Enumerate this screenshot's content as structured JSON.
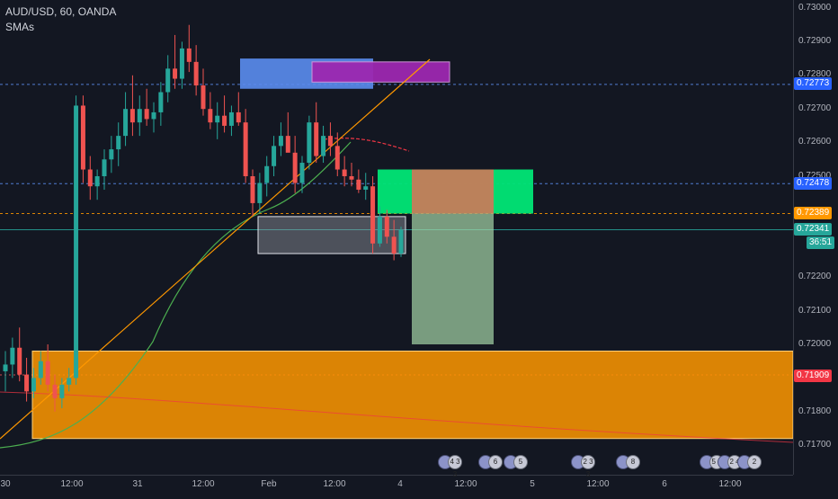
{
  "header": {
    "symbol": "AUD/USD, 60, OANDA",
    "study": "SMAs"
  },
  "price_axis": {
    "ticks": [
      "0.73000",
      "0.72900",
      "0.72800",
      "0.72700",
      "0.72600",
      "0.72500",
      "0.72200",
      "0.72100",
      "0.72000",
      "0.71800",
      "0.71700"
    ],
    "tags": [
      {
        "label": "0.72773",
        "color": "#2962ff"
      },
      {
        "label": "0.72478",
        "color": "#2962ff"
      },
      {
        "label": "0.72389",
        "color": "#ff9800"
      },
      {
        "label": "0.72341",
        "color": "#26a69a"
      },
      {
        "label": "36:51",
        "color": "#26a69a"
      },
      {
        "label": "0.71909",
        "color": "#f23645"
      }
    ]
  },
  "time_axis": {
    "ticks": [
      "30",
      "12:00",
      "31",
      "12:00",
      "Feb",
      "12:00",
      "4",
      "12:00",
      "5",
      "12:00",
      "6",
      "12:00"
    ]
  },
  "events": [
    {
      "label": "4 3 3",
      "kind": "calendar"
    },
    {
      "label": "6",
      "kind": "calendar"
    },
    {
      "label": "5",
      "kind": "calendar"
    },
    {
      "label": "2 3 3",
      "kind": "calendar"
    },
    {
      "label": "8",
      "kind": "calendar"
    },
    {
      "label": "5 3",
      "kind": "calendar"
    },
    {
      "label": "2 4",
      "kind": "calendar"
    },
    {
      "label": "2",
      "kind": "calendar"
    }
  ],
  "colors": {
    "up": "#26a69a",
    "down": "#ef5350",
    "background": "#131722",
    "sma_fast": "#f23645",
    "sma_slow": "#4caf50",
    "trendline": "#ff9800",
    "zone_orange": "#ff9800",
    "zone_blue": "#5b8def",
    "zone_purple": "#9c27b0",
    "target": "#00e676",
    "risk": "#c57c5a"
  },
  "chart_data": {
    "type": "candlestick",
    "symbol": "AUD/USD",
    "interval": "60",
    "ylim": [
      0.7165,
      0.7305
    ],
    "levels": [
      0.72773,
      0.72478,
      0.72389,
      0.72341,
      0.71909
    ],
    "zones": [
      {
        "name": "demand",
        "y_range": [
          0.7172,
          0.7198
        ]
      },
      {
        "name": "range",
        "y_range": [
          0.7227,
          0.7238
        ]
      },
      {
        "name": "supply-blue",
        "y_range": [
          0.7276,
          0.7285
        ]
      },
      {
        "name": "supply-purple",
        "y_range": [
          0.7278,
          0.7284
        ]
      }
    ],
    "position": {
      "type": "long",
      "entry": 0.72389,
      "target": 0.7252,
      "stop": 0.72
    },
    "candles": [
      [
        0.7192,
        0.7198,
        0.7186,
        0.7194
      ],
      [
        0.7194,
        0.7202,
        0.719,
        0.7199
      ],
      [
        0.7199,
        0.7205,
        0.7189,
        0.7191
      ],
      [
        0.7191,
        0.7196,
        0.7183,
        0.7186
      ],
      [
        0.7186,
        0.7193,
        0.7184,
        0.719
      ],
      [
        0.719,
        0.7198,
        0.7188,
        0.7195
      ],
      [
        0.7195,
        0.72,
        0.7186,
        0.7188
      ],
      [
        0.7188,
        0.7191,
        0.718,
        0.7184
      ],
      [
        0.7184,
        0.719,
        0.7181,
        0.7188
      ],
      [
        0.7188,
        0.7193,
        0.7186,
        0.719
      ],
      [
        0.719,
        0.7274,
        0.7188,
        0.7271
      ],
      [
        0.7271,
        0.7274,
        0.7248,
        0.7252
      ],
      [
        0.7252,
        0.7256,
        0.7243,
        0.7247
      ],
      [
        0.7247,
        0.7252,
        0.7243,
        0.725
      ],
      [
        0.725,
        0.7258,
        0.7246,
        0.7255
      ],
      [
        0.7255,
        0.7262,
        0.7251,
        0.7258
      ],
      [
        0.7258,
        0.7266,
        0.7253,
        0.7262
      ],
      [
        0.7262,
        0.7275,
        0.7259,
        0.727
      ],
      [
        0.727,
        0.728,
        0.7262,
        0.7266
      ],
      [
        0.7266,
        0.7274,
        0.7262,
        0.727
      ],
      [
        0.727,
        0.7276,
        0.7265,
        0.7267
      ],
      [
        0.7267,
        0.7272,
        0.7263,
        0.7269
      ],
      [
        0.7269,
        0.7278,
        0.7265,
        0.7275
      ],
      [
        0.7275,
        0.7286,
        0.7272,
        0.7282
      ],
      [
        0.7282,
        0.7292,
        0.7276,
        0.7279
      ],
      [
        0.7279,
        0.729,
        0.7276,
        0.7288
      ],
      [
        0.7288,
        0.7295,
        0.7281,
        0.7284
      ],
      [
        0.7284,
        0.7289,
        0.7274,
        0.7277
      ],
      [
        0.7277,
        0.7282,
        0.7268,
        0.727
      ],
      [
        0.727,
        0.7275,
        0.7264,
        0.7266
      ],
      [
        0.7266,
        0.7272,
        0.7261,
        0.7268
      ],
      [
        0.7268,
        0.7274,
        0.7263,
        0.7265
      ],
      [
        0.7265,
        0.7271,
        0.7262,
        0.7269
      ],
      [
        0.7269,
        0.7275,
        0.7265,
        0.7266
      ],
      [
        0.7266,
        0.727,
        0.7248,
        0.725
      ],
      [
        0.725,
        0.7252,
        0.7238,
        0.7242
      ],
      [
        0.7242,
        0.7251,
        0.7239,
        0.7248
      ],
      [
        0.7248,
        0.7256,
        0.7244,
        0.7253
      ],
      [
        0.7253,
        0.7262,
        0.725,
        0.7259
      ],
      [
        0.7259,
        0.7266,
        0.7256,
        0.7262
      ],
      [
        0.7262,
        0.7269,
        0.7258,
        0.7257
      ],
      [
        0.7257,
        0.7262,
        0.7245,
        0.7248
      ],
      [
        0.7248,
        0.7256,
        0.7245,
        0.7254
      ],
      [
        0.7254,
        0.7268,
        0.7252,
        0.7266
      ],
      [
        0.7266,
        0.7272,
        0.7254,
        0.7256
      ],
      [
        0.7256,
        0.7265,
        0.7254,
        0.7262
      ],
      [
        0.7262,
        0.7266,
        0.7256,
        0.7259
      ],
      [
        0.7259,
        0.7263,
        0.725,
        0.7252
      ],
      [
        0.7252,
        0.7256,
        0.7247,
        0.725
      ],
      [
        0.725,
        0.7254,
        0.7247,
        0.7249
      ],
      [
        0.7249,
        0.7252,
        0.7245,
        0.7246
      ],
      [
        0.7246,
        0.7251,
        0.7243,
        0.7247
      ],
      [
        0.7247,
        0.725,
        0.7227,
        0.723
      ],
      [
        0.723,
        0.7241,
        0.7229,
        0.7238
      ],
      [
        0.7238,
        0.724,
        0.723,
        0.7232
      ],
      [
        0.7232,
        0.7237,
        0.7225,
        0.7227
      ],
      [
        0.7227,
        0.7235,
        0.7226,
        0.7234
      ]
    ]
  }
}
